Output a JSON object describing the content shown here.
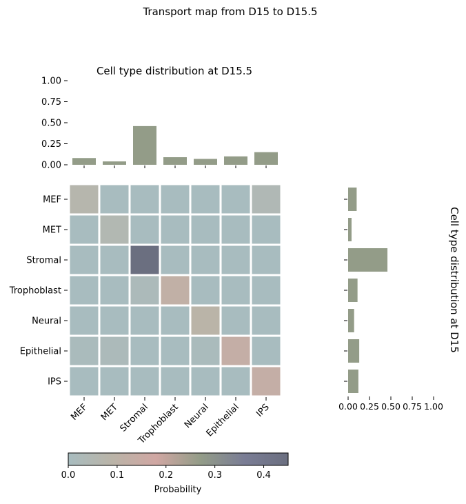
{
  "figure": {
    "suptitle": "Transport map from D15 to D15.5"
  },
  "chart_data": [
    {
      "type": "bar",
      "orientation": "vertical",
      "title": "Cell type distribution at D15.5",
      "categories": [
        "MEF",
        "MET",
        "Stromal",
        "Trophoblast",
        "Neural",
        "Epithelial",
        "IPS"
      ],
      "values": [
        0.08,
        0.04,
        0.46,
        0.09,
        0.07,
        0.1,
        0.15
      ],
      "ylim": [
        0,
        1
      ],
      "yticks": [
        "0.00",
        "0.25",
        "0.50",
        "0.75",
        "1.00"
      ],
      "color": "#939c88",
      "grid": false
    },
    {
      "type": "heatmap",
      "rows": [
        "MEF",
        "MET",
        "Stromal",
        "Trophoblast",
        "Neural",
        "Epithelial",
        "IPS"
      ],
      "cols": [
        "MEF",
        "MET",
        "Stromal",
        "Trophoblast",
        "Neural",
        "Epithelial",
        "IPS"
      ],
      "values": [
        [
          0.07,
          0.0,
          0.0,
          0.0,
          0.0,
          0.0,
          0.04
        ],
        [
          0.0,
          0.05,
          0.0,
          0.0,
          0.0,
          0.0,
          0.0
        ],
        [
          0.0,
          0.0,
          0.45,
          0.0,
          0.0,
          0.0,
          0.0
        ],
        [
          0.0,
          0.0,
          0.02,
          0.12,
          0.0,
          0.0,
          0.0
        ],
        [
          0.0,
          0.0,
          0.0,
          0.0,
          0.09,
          0.0,
          0.0
        ],
        [
          0.01,
          0.02,
          0.0,
          0.0,
          0.01,
          0.13,
          0.0
        ],
        [
          0.0,
          0.0,
          0.0,
          0.0,
          0.0,
          0.0,
          0.13
        ]
      ],
      "colorbar": {
        "label": "Probability",
        "range": [
          0,
          0.45
        ],
        "ticks": [
          "0.0",
          "0.1",
          "0.2",
          "0.3",
          "0.4"
        ],
        "tick_values": [
          0.0,
          0.1,
          0.2,
          0.3,
          0.4
        ],
        "colors": [
          "#a8bcbf",
          "#bab4a8",
          "#d0a7a3",
          "#939c88",
          "#7a7d95",
          "#6b6f80"
        ]
      }
    },
    {
      "type": "bar",
      "orientation": "horizontal",
      "ylabel": "Cell type distribution at D15",
      "categories": [
        "MEF",
        "MET",
        "Stromal",
        "Trophoblast",
        "Neural",
        "Epithelial",
        "IPS"
      ],
      "values": [
        0.1,
        0.04,
        0.46,
        0.11,
        0.07,
        0.13,
        0.12
      ],
      "xlim": [
        0,
        1
      ],
      "xticks": [
        "0.00",
        "0.25",
        "0.50",
        "0.75",
        "1.00"
      ],
      "color": "#939c88",
      "grid": false
    }
  ]
}
